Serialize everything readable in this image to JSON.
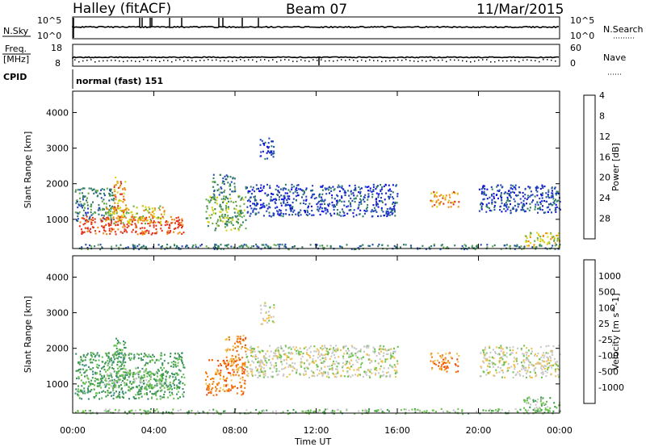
{
  "header": {
    "title": "Halley (fitACF)",
    "beam": "Beam 07",
    "date": "11/Mar/2015"
  },
  "strips": {
    "nsky_label": "N.Sky",
    "nsky_ticks": [
      "10^5",
      "10^0"
    ],
    "nsearch_label": "N.Search",
    "freq_label": "Freq.",
    "freq_unit": "[MHz]",
    "freq_ticks": [
      "18",
      "8"
    ],
    "right_ticks": [
      "60",
      "0"
    ],
    "nave_label": "Nave",
    "cpid_label": "CPID",
    "cpid_value": "normal (fast) 151"
  },
  "chart_data": [
    {
      "type": "heatmap",
      "name": "power",
      "title": "",
      "xlabel": "Time UT",
      "ylabel": "Slant Range [km]",
      "colorbar_label": "Power [dB]",
      "xlim": [
        0,
        24
      ],
      "ylim": [
        180,
        4600
      ],
      "x_ticks": [
        "00:00",
        "04:00",
        "08:00",
        "12:00",
        "16:00",
        "20:00",
        "00:00"
      ],
      "y_ticks": [
        1000,
        2000,
        3000,
        4000
      ],
      "colorbar_ticks": [
        "4",
        "8",
        "12",
        "16",
        "20",
        "24",
        "28"
      ],
      "colorbar_colors": [
        "#1010e0",
        "#2246b8",
        "#2e7d62",
        "#63a84f",
        "#d7d20f",
        "#f08a10",
        "#e2321a"
      ],
      "blobs": [
        {
          "t0": 0.1,
          "t1": 2.0,
          "r0": 950,
          "r1": 1900,
          "level": 2
        },
        {
          "t0": 0.3,
          "t1": 5.5,
          "r0": 600,
          "r1": 1100,
          "level": 6
        },
        {
          "t0": 1.5,
          "t1": 4.5,
          "r0": 900,
          "r1": 1400,
          "level": 4
        },
        {
          "t0": 2.0,
          "t1": 2.6,
          "r0": 1200,
          "r1": 2200,
          "level": 5
        },
        {
          "t0": 6.5,
          "t1": 8.5,
          "r0": 700,
          "r1": 1700,
          "level": 3
        },
        {
          "t0": 6.8,
          "t1": 8.0,
          "r0": 1700,
          "r1": 2300,
          "level": 2
        },
        {
          "t0": 8.5,
          "t1": 16.0,
          "r0": 1100,
          "r1": 2000,
          "level": 1
        },
        {
          "t0": 9.2,
          "t1": 9.9,
          "r0": 2700,
          "r1": 3300,
          "level": 1
        },
        {
          "t0": 17.6,
          "t1": 19.0,
          "r0": 1350,
          "r1": 1800,
          "level": 5
        },
        {
          "t0": 20.0,
          "t1": 24.0,
          "r0": 1200,
          "r1": 2000,
          "level": 1
        },
        {
          "t0": 22.2,
          "t1": 24.0,
          "r0": 250,
          "r1": 650,
          "level": 4
        },
        {
          "t0": 0.1,
          "t1": 24.0,
          "r0": 180,
          "r1": 320,
          "level": 2
        }
      ]
    },
    {
      "type": "heatmap",
      "name": "velocity",
      "title": "",
      "xlabel": "Time UT",
      "ylabel": "Slant Range [km]",
      "colorbar_label": "Velocity [m s^-1]",
      "xlim": [
        0,
        24
      ],
      "ylim": [
        180,
        4600
      ],
      "x_ticks": [
        "00:00",
        "04:00",
        "08:00",
        "12:00",
        "16:00",
        "20:00",
        "00:00"
      ],
      "y_ticks": [
        1000,
        2000,
        3000,
        4000
      ],
      "colorbar_ticks": [
        "1000",
        "500",
        "100",
        "25",
        "-25",
        "-100",
        "-500",
        "-1000"
      ],
      "colorbar_colors": [
        "#2c46a8",
        "#3c8c7c",
        "#3f9a4c",
        "#6cc24e",
        "#c8c8c8",
        "#f0c050",
        "#f07f10",
        "#f04a10",
        "#e21c1c"
      ],
      "blobs": [
        {
          "t0": 0.1,
          "t1": 5.5,
          "r0": 600,
          "r1": 1900,
          "level": 2
        },
        {
          "t0": 1.5,
          "t1": 4.5,
          "r0": 900,
          "r1": 1400,
          "level": 3
        },
        {
          "t0": 2.0,
          "t1": 2.6,
          "r0": 1200,
          "r1": 2300,
          "level": 2
        },
        {
          "t0": 6.5,
          "t1": 8.5,
          "r0": 700,
          "r1": 1700,
          "level": 6
        },
        {
          "t0": 7.5,
          "t1": 8.5,
          "r0": 1400,
          "r1": 2400,
          "level": 6
        },
        {
          "t0": 8.5,
          "t1": 16.0,
          "r0": 1200,
          "r1": 2100,
          "level": 4
        },
        {
          "t0": 9.2,
          "t1": 9.9,
          "r0": 2700,
          "r1": 3300,
          "level": 4
        },
        {
          "t0": 17.6,
          "t1": 19.0,
          "r0": 1350,
          "r1": 1900,
          "level": 6
        },
        {
          "t0": 20.0,
          "t1": 24.0,
          "r0": 1200,
          "r1": 2100,
          "level": 4
        },
        {
          "t0": 22.2,
          "t1": 24.0,
          "r0": 250,
          "r1": 650,
          "level": 3
        },
        {
          "t0": 0.1,
          "t1": 24.0,
          "r0": 180,
          "r1": 320,
          "level": 3
        }
      ]
    }
  ]
}
